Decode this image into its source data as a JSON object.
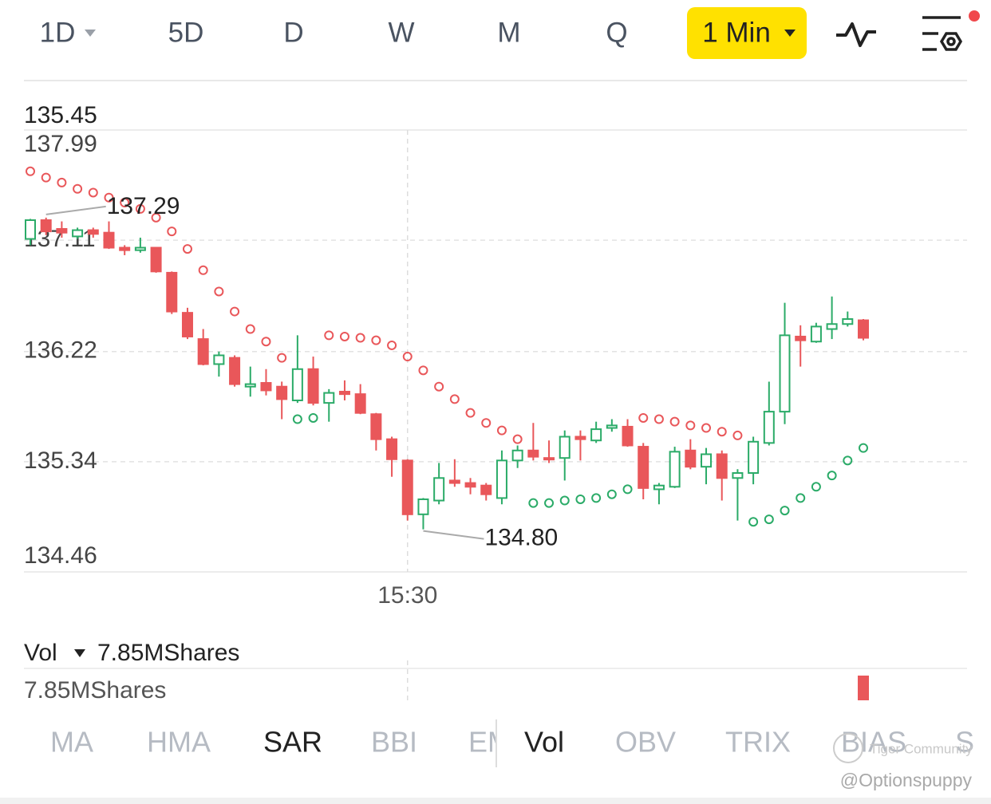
{
  "toolbar": {
    "tabs": [
      "1D",
      "5D",
      "D",
      "W",
      "M",
      "Q"
    ],
    "interval": "1 Min"
  },
  "chart_data": {
    "type": "candlestick",
    "top_label": "135.45",
    "annotations": {
      "high": "137.29",
      "low": "134.80"
    },
    "categories": [
      null,
      null,
      null,
      null,
      null,
      null,
      null,
      null,
      null,
      null,
      null,
      null,
      null,
      null,
      null,
      null,
      null,
      null,
      null,
      null,
      null,
      null,
      null,
      null,
      "15:30",
      null,
      null,
      null,
      null,
      null,
      null,
      null,
      null,
      null,
      null,
      null,
      null,
      null,
      null,
      null,
      null,
      null,
      null,
      null,
      null,
      null,
      null,
      null,
      null,
      null,
      null,
      null,
      null,
      null
    ],
    "open": [
      137.12,
      137.27,
      137.2,
      137.14,
      137.19,
      137.17,
      137.05,
      137.03,
      137.05,
      136.85,
      136.53,
      136.32,
      136.12,
      136.17,
      135.94,
      135.97,
      135.94,
      135.83,
      136.08,
      135.81,
      135.9,
      135.88,
      135.72,
      135.52,
      135.35,
      134.92,
      135.03,
      135.19,
      135.17,
      135.15,
      135.05,
      135.35,
      135.43,
      135.37,
      135.37,
      135.54,
      135.51,
      135.61,
      135.62,
      135.46,
      135.12,
      135.14,
      135.43,
      135.3,
      135.4,
      135.21,
      135.25,
      135.49,
      135.74,
      136.34,
      136.3,
      136.4,
      136.44,
      136.47
    ],
    "high": [
      137.28,
      137.29,
      137.26,
      137.21,
      137.21,
      137.26,
      137.07,
      137.13,
      137.05,
      136.86,
      136.57,
      136.4,
      136.22,
      136.19,
      136.1,
      136.08,
      135.98,
      136.35,
      136.18,
      135.92,
      135.99,
      135.96,
      135.73,
      135.54,
      135.36,
      135.05,
      135.33,
      135.36,
      135.21,
      135.17,
      135.43,
      135.47,
      135.65,
      135.51,
      135.59,
      135.59,
      135.66,
      135.68,
      135.68,
      135.49,
      135.17,
      135.46,
      135.52,
      135.45,
      135.43,
      135.28,
      135.54,
      135.98,
      136.61,
      136.43,
      136.45,
      136.66,
      136.54,
      136.48
    ],
    "low": [
      137.07,
      137.15,
      137.13,
      137.12,
      137.13,
      137.04,
      136.99,
      137.01,
      136.85,
      136.52,
      136.32,
      136.11,
      136.02,
      135.94,
      135.86,
      135.87,
      135.68,
      135.81,
      135.79,
      135.66,
      135.83,
      135.72,
      135.43,
      135.22,
      134.87,
      134.8,
      135.0,
      135.14,
      135.08,
      135.03,
      135.0,
      135.29,
      135.35,
      135.33,
      135.19,
      135.35,
      135.49,
      135.58,
      135.46,
      135.04,
      135.0,
      135.13,
      135.28,
      135.16,
      135.03,
      134.87,
      135.16,
      135.47,
      135.64,
      136.1,
      136.29,
      136.32,
      136.42,
      136.31
    ],
    "close": [
      137.27,
      137.18,
      137.17,
      137.19,
      137.16,
      137.05,
      137.03,
      137.05,
      136.86,
      136.54,
      136.34,
      136.12,
      136.19,
      135.96,
      135.96,
      135.91,
      135.84,
      136.08,
      135.81,
      135.89,
      135.88,
      135.73,
      135.52,
      135.36,
      134.92,
      135.04,
      135.21,
      135.17,
      135.14,
      135.08,
      135.35,
      135.43,
      135.38,
      135.36,
      135.54,
      135.52,
      135.6,
      135.63,
      135.47,
      135.13,
      135.15,
      135.42,
      135.3,
      135.4,
      135.21,
      135.25,
      135.5,
      135.74,
      136.35,
      136.31,
      136.42,
      136.44,
      136.48,
      136.33
    ],
    "sar": [
      137.66,
      137.61,
      137.57,
      137.52,
      137.49,
      137.45,
      137.41,
      137.36,
      137.29,
      137.18,
      137.04,
      136.87,
      136.7,
      136.54,
      136.4,
      136.3,
      136.17,
      135.68,
      135.69,
      136.35,
      136.34,
      136.33,
      136.31,
      136.27,
      136.18,
      136.07,
      135.94,
      135.84,
      135.73,
      135.65,
      135.59,
      135.52,
      135.01,
      135.01,
      135.03,
      135.04,
      135.05,
      135.08,
      135.12,
      135.69,
      135.68,
      135.66,
      135.63,
      135.61,
      135.58,
      135.55,
      134.86,
      134.88,
      134.95,
      135.05,
      135.14,
      135.23,
      135.35,
      135.45
    ],
    "up_color": "#2bab68",
    "down_color": "#e9575a",
    "ylim": [
      134.46,
      137.99
    ],
    "yticks": [
      137.99,
      137.11,
      136.22,
      135.34,
      134.46
    ],
    "grid": true,
    "volume": {
      "label": "Vol",
      "summary": "7.85MShares",
      "axis_label": "7.85MShares",
      "last": 7850000,
      "ylim": [
        0,
        7850000
      ]
    }
  },
  "indicator_tabs": {
    "main": [
      "MA",
      "HMA",
      "SAR",
      "BBI",
      "EMA"
    ],
    "sub": [
      "Vol",
      "OBV",
      "TRIX",
      "BIAS",
      "S"
    ]
  },
  "watermark": {
    "brand": "Tiger Community",
    "handle": "@Optionspuppy"
  }
}
